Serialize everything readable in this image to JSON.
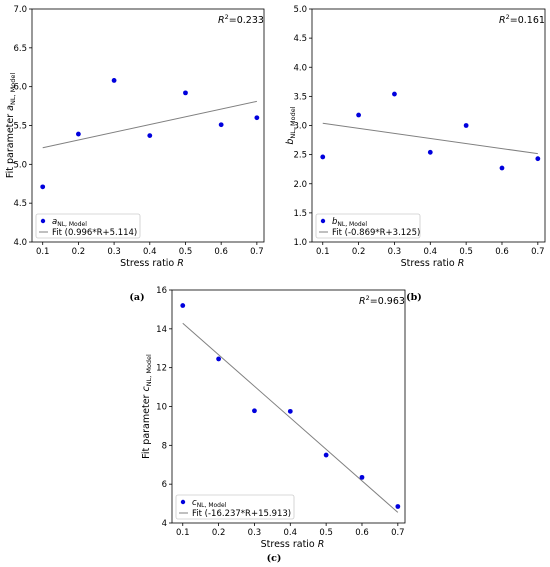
{
  "chart_data": [
    {
      "type": "scatter",
      "panel": "(a)",
      "xlabel": "Stress ratio",
      "xlabel_var": "R",
      "ylabel": "Fit parameter",
      "ylabel_var": "a",
      "ylabel_sub": "NL, Model",
      "xlim": [
        0.07,
        0.72
      ],
      "ylim": [
        4.0,
        7.0
      ],
      "xticks": [
        "0.1",
        "0.2",
        "0.3",
        "0.4",
        "0.5",
        "0.6",
        "0.7"
      ],
      "yticks": [
        "4.0",
        "4.5",
        "5.0",
        "5.5",
        "6.0",
        "6.5",
        "7.0"
      ],
      "r2_label": "R",
      "r2_value": "=0.233",
      "points": {
        "name": "a",
        "name_sub": "NL, Model",
        "x": [
          0.1,
          0.2,
          0.3,
          0.4,
          0.5,
          0.6,
          0.7
        ],
        "y": [
          4.71,
          5.39,
          6.08,
          5.37,
          5.92,
          5.51,
          5.6
        ],
        "color": "#0000dd"
      },
      "fit": {
        "name": "Fit (0.996*R+5.114)",
        "slope": 0.996,
        "intercept": 5.114,
        "x": [
          0.1,
          0.7
        ],
        "color": "#808080"
      },
      "legend_position": "lower-left",
      "r2_position": "top-right"
    },
    {
      "type": "scatter",
      "panel": "(b)",
      "xlabel": "Stress ratio",
      "xlabel_var": "R",
      "ylabel": "",
      "ylabel_var": "b",
      "ylabel_sub": "NL, Model",
      "xlim": [
        0.07,
        0.72
      ],
      "ylim": [
        1.0,
        5.0
      ],
      "xticks": [
        "0.1",
        "0.2",
        "0.3",
        "0.4",
        "0.5",
        "0.6",
        "0.7"
      ],
      "yticks": [
        "1.0",
        "1.5",
        "2.0",
        "2.5",
        "3.0",
        "3.5",
        "4.0",
        "4.5",
        "5.0"
      ],
      "r2_label": "R",
      "r2_value": "=0.161",
      "points": {
        "name": "b",
        "name_sub": "NL, Model",
        "x": [
          0.1,
          0.2,
          0.3,
          0.4,
          0.5,
          0.6,
          0.7
        ],
        "y": [
          2.46,
          3.18,
          3.54,
          2.54,
          3.0,
          2.27,
          2.43
        ],
        "color": "#0000dd"
      },
      "fit": {
        "name": "Fit (-0.869*R+3.125)",
        "slope": -0.869,
        "intercept": 3.125,
        "x": [
          0.1,
          0.7
        ],
        "color": "#808080"
      },
      "legend_position": "lower-left",
      "r2_position": "top-right"
    },
    {
      "type": "scatter",
      "panel": "(c)",
      "xlabel": "Stress ratio",
      "xlabel_var": "R",
      "ylabel": "Fit parameter",
      "ylabel_var": "c",
      "ylabel_sub": "NL, Model",
      "xlim": [
        0.07,
        0.72
      ],
      "ylim": [
        4.0,
        16.0
      ],
      "xticks": [
        "0.1",
        "0.2",
        "0.3",
        "0.4",
        "0.5",
        "0.6",
        "0.7"
      ],
      "yticks": [
        "4",
        "6",
        "8",
        "10",
        "12",
        "14",
        "16"
      ],
      "r2_label": "R",
      "r2_value": "=0.963",
      "points": {
        "name": "c",
        "name_sub": "NL, Model",
        "x": [
          0.1,
          0.2,
          0.3,
          0.4,
          0.5,
          0.6,
          0.7
        ],
        "y": [
          15.2,
          12.45,
          9.78,
          9.75,
          7.5,
          6.35,
          4.85
        ],
        "color": "#0000dd"
      },
      "fit": {
        "name": "Fit (-16.237*R+15.913)",
        "slope": -16.237,
        "intercept": 15.913,
        "x": [
          0.1,
          0.7
        ],
        "color": "#808080"
      },
      "legend_position": "lower-left",
      "r2_position": "top-right"
    }
  ]
}
